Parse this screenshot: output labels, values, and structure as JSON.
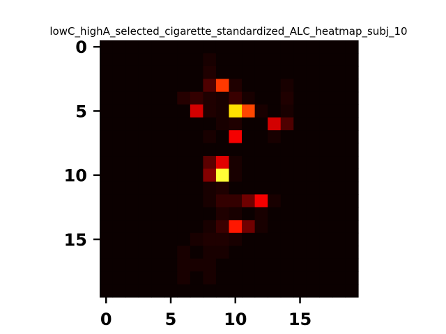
{
  "chart_data": {
    "type": "heatmap",
    "title": "lowC_highA_selected_cigarette_standardized_ALC_heatmap_subj_10",
    "xlabel": "",
    "ylabel": "",
    "rows": 20,
    "cols": 20,
    "x_ticks": [
      "0",
      "5",
      "10",
      "15"
    ],
    "y_ticks": [
      "0",
      "5",
      "10",
      "15"
    ],
    "colormap": "hot",
    "colors": {
      "background": "#ffffff",
      "frame": "#000000"
    },
    "values": [
      [
        0,
        0,
        0,
        0,
        0,
        0,
        0,
        0,
        0,
        0,
        0,
        0,
        0,
        0,
        0,
        0,
        0,
        0,
        0,
        0
      ],
      [
        0,
        0,
        0,
        0,
        0,
        0,
        0,
        0,
        0.02,
        0,
        0,
        0,
        0,
        0,
        0,
        0,
        0,
        0,
        0,
        0
      ],
      [
        0,
        0,
        0,
        0,
        0,
        0,
        0,
        0,
        0.03,
        0,
        0,
        0,
        0,
        0,
        0,
        0,
        0,
        0,
        0,
        0
      ],
      [
        0,
        0,
        0,
        0,
        0,
        0,
        0,
        0,
        0.1,
        0.45,
        0.03,
        0,
        0,
        0,
        0.02,
        0,
        0,
        0,
        0,
        0
      ],
      [
        0,
        0,
        0,
        0,
        0,
        0,
        0.04,
        0.06,
        0.03,
        0.02,
        0.07,
        0.02,
        0,
        0,
        0.03,
        0,
        0,
        0,
        0,
        0
      ],
      [
        0,
        0,
        0,
        0,
        0,
        0,
        0,
        0.3,
        0.03,
        0.02,
        0.7,
        0.47,
        0.02,
        0,
        0.02,
        0,
        0,
        0,
        0,
        0
      ],
      [
        0,
        0,
        0,
        0,
        0,
        0,
        0,
        0,
        0,
        0.02,
        0.03,
        0,
        0,
        0.3,
        0.1,
        0,
        0,
        0,
        0,
        0
      ],
      [
        0,
        0,
        0,
        0,
        0,
        0,
        0,
        0,
        0.02,
        0,
        0.35,
        0,
        0,
        0.02,
        0,
        0,
        0,
        0,
        0,
        0
      ],
      [
        0,
        0,
        0,
        0,
        0,
        0,
        0,
        0,
        0,
        0,
        0,
        0,
        0,
        0,
        0,
        0,
        0,
        0,
        0,
        0
      ],
      [
        0,
        0,
        0,
        0,
        0,
        0,
        0,
        0,
        0.12,
        0.32,
        0.02,
        0,
        0,
        0,
        0,
        0,
        0,
        0,
        0,
        0
      ],
      [
        0,
        0,
        0,
        0,
        0,
        0,
        0,
        0,
        0.18,
        0.8,
        0.02,
        0,
        0,
        0,
        0,
        0,
        0,
        0,
        0,
        0
      ],
      [
        0,
        0,
        0,
        0,
        0,
        0,
        0,
        0,
        0.02,
        0.03,
        0,
        0,
        0,
        0,
        0,
        0,
        0,
        0,
        0,
        0
      ],
      [
        0,
        0,
        0,
        0,
        0,
        0,
        0,
        0,
        0.02,
        0.06,
        0.06,
        0.15,
        0.35,
        0.02,
        0,
        0,
        0,
        0,
        0,
        0
      ],
      [
        0,
        0,
        0,
        0,
        0,
        0,
        0,
        0,
        0,
        0.03,
        0.02,
        0,
        0.02,
        0,
        0,
        0,
        0,
        0,
        0,
        0
      ],
      [
        0,
        0,
        0,
        0,
        0,
        0,
        0,
        0,
        0.02,
        0.07,
        0.4,
        0.15,
        0.02,
        0,
        0,
        0,
        0,
        0,
        0,
        0
      ],
      [
        0,
        0,
        0,
        0,
        0,
        0,
        0,
        0.02,
        0.03,
        0.03,
        0.02,
        0,
        0,
        0,
        0,
        0,
        0,
        0,
        0,
        0
      ],
      [
        0,
        0,
        0,
        0,
        0,
        0,
        0.02,
        0,
        0.02,
        0.02,
        0,
        0,
        0,
        0,
        0,
        0,
        0,
        0,
        0,
        0
      ],
      [
        0,
        0,
        0,
        0,
        0,
        0,
        0.02,
        0.02,
        0.02,
        0,
        0,
        0,
        0,
        0,
        0,
        0,
        0,
        0,
        0,
        0
      ],
      [
        0,
        0,
        0,
        0,
        0,
        0,
        0.02,
        0,
        0.02,
        0,
        0,
        0,
        0,
        0,
        0,
        0,
        0,
        0,
        0,
        0
      ],
      [
        0,
        0,
        0,
        0,
        0,
        0,
        0,
        0,
        0,
        0,
        0,
        0,
        0,
        0,
        0,
        0,
        0,
        0,
        0,
        0
      ]
    ]
  }
}
